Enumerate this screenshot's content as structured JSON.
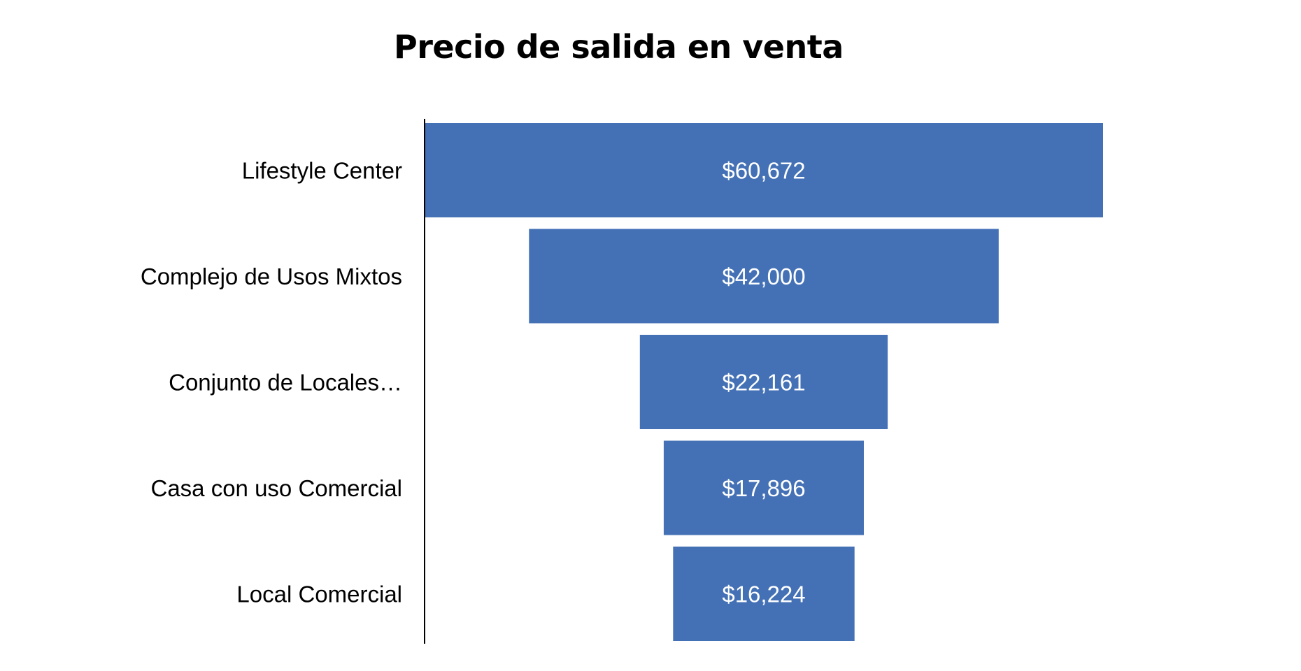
{
  "chart_data": {
    "type": "bar",
    "subtype": "funnel",
    "title": "Precio de salida en venta",
    "categories": [
      "Lifestyle Center",
      "Complejo de Usos Mixtos",
      "Conjunto de Locales…",
      "Casa con uso Comercial",
      "Local Comercial"
    ],
    "values": [
      60672,
      42000,
      22161,
      17896,
      16224
    ],
    "value_labels": [
      "$60,672",
      "$42,000",
      "$22,161",
      "$17,896",
      "$16,224"
    ],
    "xlabel": "",
    "ylabel": "",
    "grid": false,
    "legend": "none",
    "colors": {
      "bar": "#4471B5",
      "axis": "#000000",
      "value_text": "#ffffff"
    }
  }
}
